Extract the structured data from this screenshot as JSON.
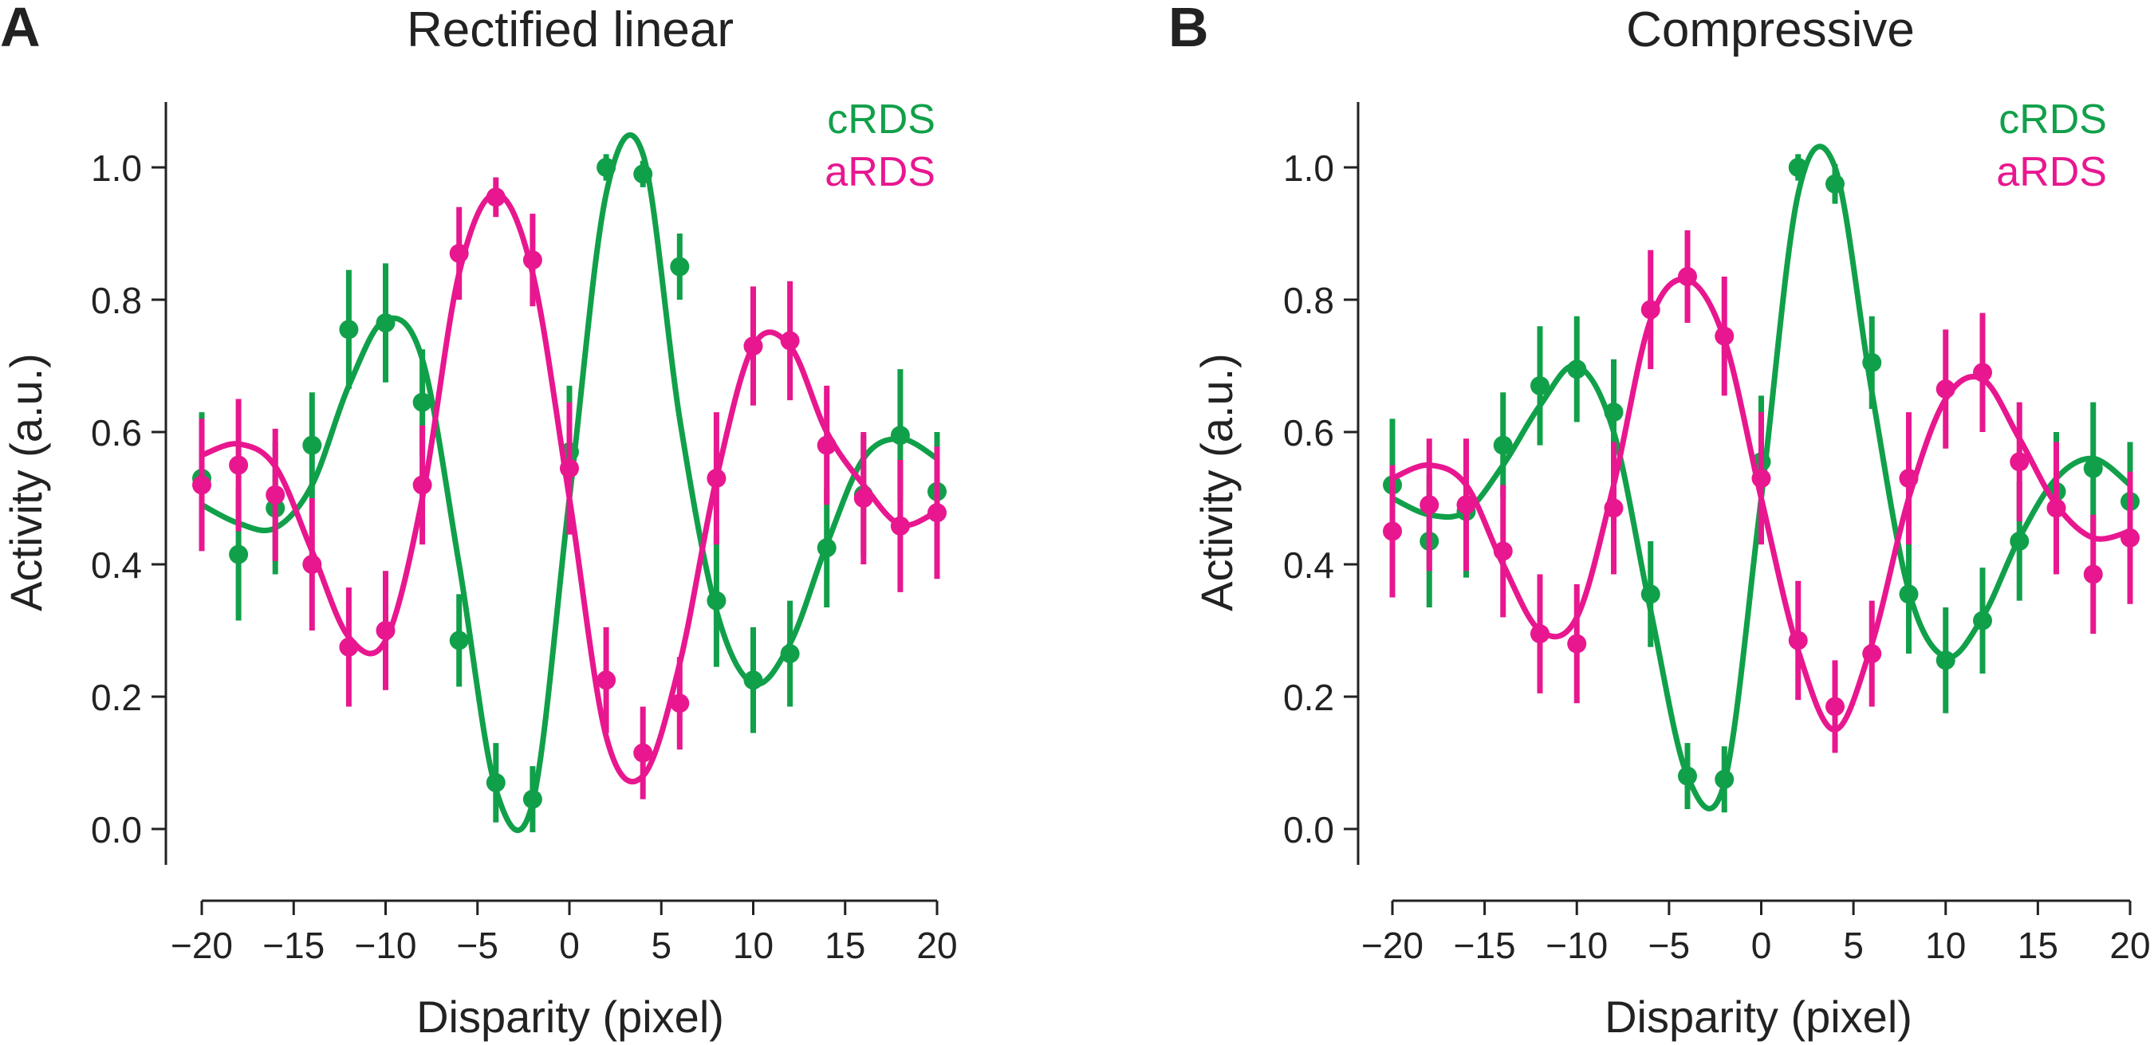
{
  "colors": {
    "crds": "#11a04a",
    "ards": "#e8178f",
    "axis": "#222222"
  },
  "chart_data": [
    {
      "type": "scatter",
      "panel_label": "A",
      "title": "Rectified linear",
      "xlabel": "Disparity (pixel)",
      "ylabel": "Activity (a.u.)",
      "xlim": [
        -20,
        20
      ],
      "ylim": [
        -0.05,
        1.1
      ],
      "xticks": [
        -20,
        -15,
        -10,
        -5,
        0,
        5,
        10,
        15,
        20
      ],
      "xtick_labels": [
        "−20",
        "−15",
        "−10",
        "−5",
        "0",
        "5",
        "10",
        "15",
        "20"
      ],
      "yticks": [
        0,
        0.2,
        0.4,
        0.6,
        0.8,
        1.0
      ],
      "ytick_labels": [
        "0.0",
        "0.2",
        "0.4",
        "0.6",
        "0.8",
        "1.0"
      ],
      "legend_position": "top-right",
      "x": [
        -20,
        -18,
        -16,
        -14,
        -12,
        -10,
        -8,
        -6,
        -4,
        -2,
        0,
        2,
        4,
        6,
        8,
        10,
        12,
        14,
        16,
        18,
        20
      ],
      "series": [
        {
          "name": "cRDS",
          "color_key": "crds",
          "values": [
            0.53,
            0.415,
            0.485,
            0.58,
            0.755,
            0.765,
            0.645,
            0.285,
            0.07,
            0.045,
            0.57,
            1.0,
            0.99,
            0.85,
            0.345,
            0.225,
            0.265,
            0.425,
            0.505,
            0.595,
            0.51
          ],
          "errors": [
            0.1,
            0.1,
            0.1,
            0.08,
            0.09,
            0.09,
            0.08,
            0.07,
            0.06,
            0.05,
            0.1,
            0.02,
            0.02,
            0.05,
            0.1,
            0.08,
            0.08,
            0.09,
            0.09,
            0.1,
            0.09
          ],
          "fit": [
            0.49,
            0.462,
            0.455,
            0.52,
            0.67,
            0.77,
            0.71,
            0.4,
            0.06,
            0.04,
            0.5,
            0.96,
            1.02,
            0.62,
            0.33,
            0.22,
            0.28,
            0.43,
            0.56,
            0.59,
            0.56
          ]
        },
        {
          "name": "aRDS",
          "color_key": "ards",
          "values": [
            0.52,
            0.55,
            0.505,
            0.4,
            0.275,
            0.3,
            0.52,
            0.87,
            0.955,
            0.86,
            0.545,
            0.225,
            0.115,
            0.19,
            0.53,
            0.73,
            0.738,
            0.58,
            0.5,
            0.458,
            0.478
          ],
          "errors": [
            0.1,
            0.1,
            0.1,
            0.1,
            0.09,
            0.09,
            0.09,
            0.07,
            0.03,
            0.07,
            0.1,
            0.08,
            0.07,
            0.07,
            0.1,
            0.09,
            0.09,
            0.09,
            0.1,
            0.1,
            0.1
          ],
          "fit": [
            0.565,
            0.582,
            0.548,
            0.42,
            0.29,
            0.285,
            0.5,
            0.84,
            0.96,
            0.84,
            0.5,
            0.14,
            0.08,
            0.25,
            0.53,
            0.73,
            0.73,
            0.6,
            0.52,
            0.46,
            0.48
          ]
        }
      ]
    },
    {
      "type": "scatter",
      "panel_label": "B",
      "title": "Compressive",
      "xlabel": "Disparity (pixel)",
      "ylabel": "Activity (a.u.)",
      "xlim": [
        -20,
        20
      ],
      "ylim": [
        -0.05,
        1.1
      ],
      "xticks": [
        -20,
        -15,
        -10,
        -5,
        0,
        5,
        10,
        15,
        20
      ],
      "xtick_labels": [
        "−20",
        "−15",
        "−10",
        "−5",
        "0",
        "5",
        "10",
        "15",
        "20"
      ],
      "yticks": [
        0,
        0.2,
        0.4,
        0.6,
        0.8,
        1.0
      ],
      "ytick_labels": [
        "0.0",
        "0.2",
        "0.4",
        "0.6",
        "0.8",
        "1.0"
      ],
      "legend_position": "top-right",
      "x": [
        -20,
        -18,
        -16,
        -14,
        -12,
        -10,
        -8,
        -6,
        -4,
        -2,
        0,
        2,
        4,
        6,
        8,
        10,
        12,
        14,
        16,
        18,
        20
      ],
      "series": [
        {
          "name": "cRDS",
          "color_key": "crds",
          "values": [
            0.52,
            0.435,
            0.48,
            0.58,
            0.67,
            0.695,
            0.63,
            0.355,
            0.08,
            0.075,
            0.555,
            1.0,
            0.975,
            0.705,
            0.355,
            0.255,
            0.315,
            0.435,
            0.51,
            0.545,
            0.495
          ],
          "errors": [
            0.1,
            0.1,
            0.1,
            0.08,
            0.09,
            0.08,
            0.08,
            0.08,
            0.05,
            0.05,
            0.1,
            0.02,
            0.03,
            0.07,
            0.09,
            0.08,
            0.08,
            0.09,
            0.09,
            0.1,
            0.09
          ],
          "fit": [
            0.5,
            0.475,
            0.48,
            0.55,
            0.64,
            0.7,
            0.6,
            0.33,
            0.08,
            0.07,
            0.5,
            0.96,
            1.0,
            0.66,
            0.36,
            0.26,
            0.32,
            0.44,
            0.53,
            0.56,
            0.52
          ]
        },
        {
          "name": "aRDS",
          "color_key": "ards",
          "values": [
            0.45,
            0.49,
            0.49,
            0.42,
            0.295,
            0.28,
            0.485,
            0.785,
            0.835,
            0.745,
            0.53,
            0.285,
            0.185,
            0.265,
            0.53,
            0.665,
            0.69,
            0.555,
            0.485,
            0.385,
            0.44
          ],
          "errors": [
            0.1,
            0.1,
            0.1,
            0.1,
            0.09,
            0.09,
            0.1,
            0.09,
            0.07,
            0.09,
            0.1,
            0.09,
            0.07,
            0.08,
            0.1,
            0.09,
            0.09,
            0.09,
            0.1,
            0.09,
            0.1
          ],
          "fit": [
            0.53,
            0.55,
            0.52,
            0.4,
            0.3,
            0.32,
            0.52,
            0.77,
            0.83,
            0.74,
            0.5,
            0.27,
            0.15,
            0.28,
            0.5,
            0.65,
            0.68,
            0.59,
            0.49,
            0.44,
            0.45
          ]
        }
      ]
    }
  ]
}
